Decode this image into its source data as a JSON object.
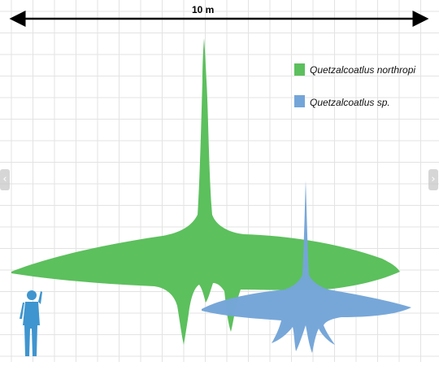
{
  "scale_bar": {
    "label": "10 m"
  },
  "legend": [
    {
      "label": "Quetzalcoatlus northropi",
      "color": "#5cc05d"
    },
    {
      "label": "Quetzalcoatlus sp.",
      "color": "#74a5d8"
    }
  ],
  "colors": {
    "grid": "#e3e3e3",
    "human": "#3f95cf",
    "arrow": "#000000"
  },
  "icons": {
    "prev": "chevron-left-icon",
    "next": "chevron-right-icon"
  },
  "nav": {
    "prev_glyph": "‹",
    "next_glyph": "›"
  }
}
